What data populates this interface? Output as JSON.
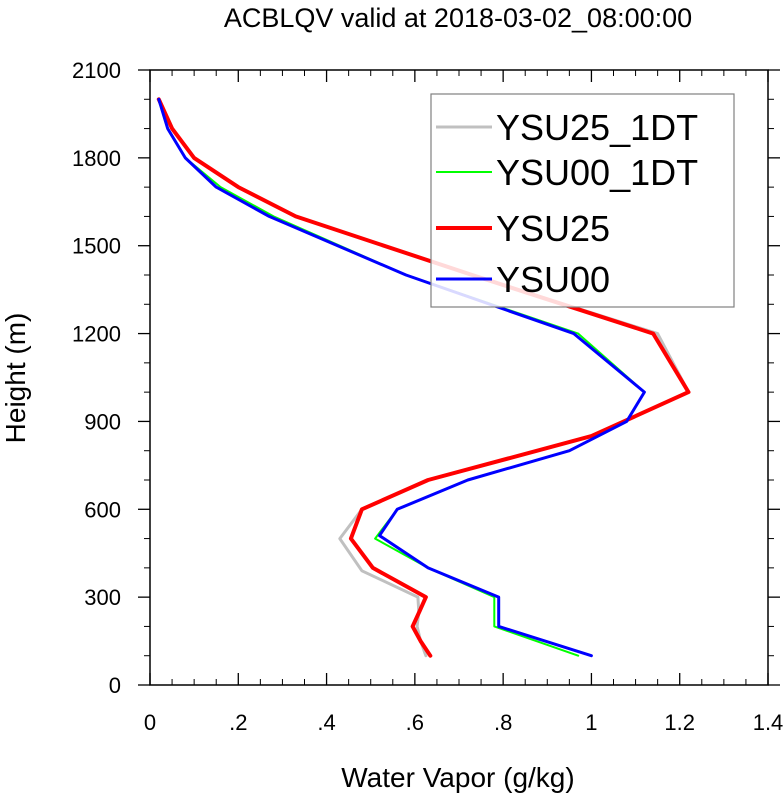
{
  "chart_data": {
    "type": "line",
    "title": "ACBLQV valid at 2018-03-02_08:00:00",
    "xlabel": "Water Vapor (g/kg)",
    "ylabel": "Height (m)",
    "xlim": [
      0,
      1.4
    ],
    "ylim": [
      0,
      2100
    ],
    "xticks": [
      0,
      0.2,
      0.4,
      0.6,
      0.8,
      1.0,
      1.2,
      1.4
    ],
    "xtick_labels": [
      "0",
      ".2",
      ".4",
      ".6",
      ".8",
      "1",
      "1.2",
      "1.4"
    ],
    "yticks": [
      0,
      300,
      600,
      900,
      1200,
      1500,
      1800,
      2100
    ],
    "ytick_labels": [
      "0",
      "300",
      "600",
      "900",
      "1200",
      "1500",
      "1800",
      "2100"
    ],
    "grid": false,
    "legend_position": "top-right",
    "series": [
      {
        "name": "YSU25_1DT",
        "color": "#c0c0c0",
        "width": 3,
        "points": [
          [
            0.625,
            100
          ],
          [
            0.613,
            150
          ],
          [
            0.605,
            200
          ],
          [
            0.609,
            250
          ],
          [
            0.607,
            300
          ],
          [
            0.48,
            390
          ],
          [
            0.43,
            500
          ],
          [
            0.48,
            600
          ],
          [
            0.63,
            700
          ],
          [
            1.0,
            850
          ],
          [
            1.22,
            1000
          ],
          [
            1.15,
            1200
          ],
          [
            0.73,
            1400
          ],
          [
            0.33,
            1600
          ],
          [
            0.2,
            1700
          ],
          [
            0.1,
            1800
          ],
          [
            0.05,
            1900
          ],
          [
            0.02,
            2000
          ]
        ]
      },
      {
        "name": "YSU00_1DT",
        "color": "#00ff00",
        "width": 2,
        "points": [
          [
            0.97,
            100
          ],
          [
            0.78,
            200
          ],
          [
            0.78,
            300
          ],
          [
            0.63,
            400
          ],
          [
            0.51,
            500
          ],
          [
            0.56,
            600
          ],
          [
            0.72,
            700
          ],
          [
            0.95,
            800
          ],
          [
            1.08,
            900
          ],
          [
            1.12,
            1000
          ],
          [
            0.97,
            1200
          ],
          [
            0.58,
            1400
          ],
          [
            0.28,
            1600
          ],
          [
            0.16,
            1700
          ],
          [
            0.08,
            1800
          ],
          [
            0.04,
            1900
          ],
          [
            0.02,
            2000
          ]
        ]
      },
      {
        "name": "YSU25",
        "color": "#ff0000",
        "width": 4,
        "points": [
          [
            0.635,
            100
          ],
          [
            0.613,
            150
          ],
          [
            0.595,
            200
          ],
          [
            0.61,
            250
          ],
          [
            0.625,
            300
          ],
          [
            0.505,
            400
          ],
          [
            0.455,
            500
          ],
          [
            0.48,
            600
          ],
          [
            0.63,
            700
          ],
          [
            1.0,
            850
          ],
          [
            1.22,
            1000
          ],
          [
            1.14,
            1200
          ],
          [
            0.73,
            1400
          ],
          [
            0.33,
            1600
          ],
          [
            0.2,
            1700
          ],
          [
            0.1,
            1800
          ],
          [
            0.05,
            1900
          ],
          [
            0.02,
            2000
          ]
        ]
      },
      {
        "name": "YSU00",
        "color": "#0000ff",
        "width": 3,
        "points": [
          [
            1.0,
            100
          ],
          [
            0.79,
            200
          ],
          [
            0.79,
            300
          ],
          [
            0.63,
            400
          ],
          [
            0.52,
            510
          ],
          [
            0.56,
            600
          ],
          [
            0.72,
            700
          ],
          [
            0.95,
            800
          ],
          [
            1.08,
            900
          ],
          [
            1.12,
            1000
          ],
          [
            0.96,
            1200
          ],
          [
            0.58,
            1400
          ],
          [
            0.27,
            1600
          ],
          [
            0.15,
            1700
          ],
          [
            0.08,
            1800
          ],
          [
            0.04,
            1900
          ],
          [
            0.02,
            2000
          ]
        ]
      }
    ]
  }
}
